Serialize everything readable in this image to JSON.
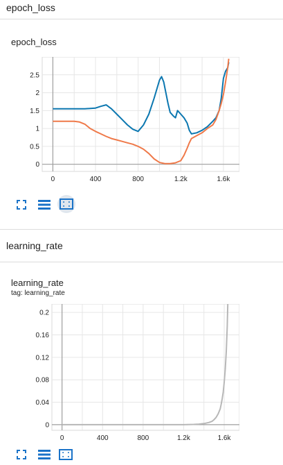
{
  "sections": [
    {
      "title": "epoch_loss"
    },
    {
      "title": "learning_rate"
    }
  ],
  "cards": [
    {
      "title": "epoch_loss",
      "tag": ""
    },
    {
      "title": "learning_rate",
      "tag": "tag: learning_rate"
    }
  ],
  "colors": {
    "blue": "#0b77b0",
    "orange": "#ef7949",
    "gray": "#b7b7b7",
    "band": "#bfe0f3"
  },
  "chart_data": [
    {
      "type": "line",
      "title": "epoch_loss",
      "xlabel": "",
      "ylabel": "",
      "xlim": [
        -100,
        1750
      ],
      "ylim": [
        -0.2,
        3.0
      ],
      "x_ticks": [
        "0",
        "400",
        "800",
        "1.2k",
        "1.6k"
      ],
      "x_tick_values": [
        0,
        400,
        800,
        1200,
        1600
      ],
      "y_ticks": [
        "0",
        "0.5",
        "1",
        "1.5",
        "2",
        "2.5"
      ],
      "y_tick_values": [
        0,
        0.5,
        1,
        1.5,
        2,
        2.5
      ],
      "grid": true,
      "series": [
        {
          "color": "#0b77b0",
          "x": [
            0,
            100,
            200,
            300,
            400,
            450,
            500,
            550,
            600,
            650,
            700,
            750,
            800,
            850,
            900,
            950,
            1000,
            1020,
            1040,
            1060,
            1080,
            1100,
            1130,
            1150,
            1170,
            1200,
            1230,
            1260,
            1280,
            1300,
            1350,
            1400,
            1450,
            1500,
            1530,
            1560,
            1580,
            1600,
            1620,
            1640,
            1650
          ],
          "y": [
            1.55,
            1.55,
            1.55,
            1.55,
            1.57,
            1.62,
            1.66,
            1.55,
            1.4,
            1.25,
            1.1,
            0.98,
            0.92,
            1.1,
            1.4,
            1.85,
            2.35,
            2.45,
            2.3,
            2.0,
            1.7,
            1.45,
            1.35,
            1.3,
            1.5,
            1.4,
            1.3,
            1.15,
            0.95,
            0.85,
            0.88,
            0.95,
            1.05,
            1.2,
            1.3,
            1.5,
            1.85,
            2.4,
            2.6,
            2.7,
            2.85
          ]
        },
        {
          "color": "#ef7949",
          "x": [
            0,
            100,
            200,
            250,
            300,
            350,
            400,
            450,
            500,
            550,
            600,
            650,
            700,
            750,
            800,
            850,
            900,
            950,
            1000,
            1050,
            1100,
            1150,
            1200,
            1230,
            1260,
            1280,
            1300,
            1350,
            1400,
            1450,
            1500,
            1530,
            1560,
            1580,
            1600,
            1620,
            1640,
            1650
          ],
          "y": [
            1.2,
            1.2,
            1.2,
            1.18,
            1.12,
            1.0,
            0.92,
            0.85,
            0.78,
            0.72,
            0.68,
            0.64,
            0.6,
            0.56,
            0.5,
            0.42,
            0.3,
            0.15,
            0.05,
            0.02,
            0.02,
            0.04,
            0.1,
            0.25,
            0.45,
            0.6,
            0.72,
            0.8,
            0.88,
            1.0,
            1.1,
            1.25,
            1.5,
            1.7,
            1.95,
            2.3,
            2.7,
            2.95
          ]
        }
      ]
    },
    {
      "type": "line",
      "title": "learning_rate",
      "xlabel": "",
      "ylabel": "",
      "xlim": [
        -100,
        1750
      ],
      "ylim": [
        -0.01,
        0.215
      ],
      "x_ticks": [
        "0",
        "400",
        "800",
        "1.2k",
        "1.6k"
      ],
      "x_tick_values": [
        0,
        400,
        800,
        1200,
        1600
      ],
      "y_ticks": [
        "0",
        "0.04",
        "0.08",
        "0.12",
        "0.16",
        "0.2"
      ],
      "y_tick_values": [
        0,
        0.04,
        0.08,
        0.12,
        0.16,
        0.2
      ],
      "grid": true,
      "series": [
        {
          "color": "#b7b7b7",
          "x": [
            0,
            200,
            400,
            600,
            800,
            1000,
            1200,
            1300,
            1350,
            1400,
            1450,
            1480,
            1500,
            1520,
            1540,
            1560,
            1570,
            1580,
            1590,
            1600,
            1610,
            1620,
            1630,
            1635
          ],
          "y": [
            0,
            0,
            0,
            0,
            0,
            0,
            0,
            0.0005,
            0.001,
            0.002,
            0.004,
            0.006,
            0.009,
            0.013,
            0.019,
            0.028,
            0.036,
            0.046,
            0.058,
            0.075,
            0.098,
            0.13,
            0.175,
            0.215
          ]
        }
      ]
    }
  ]
}
